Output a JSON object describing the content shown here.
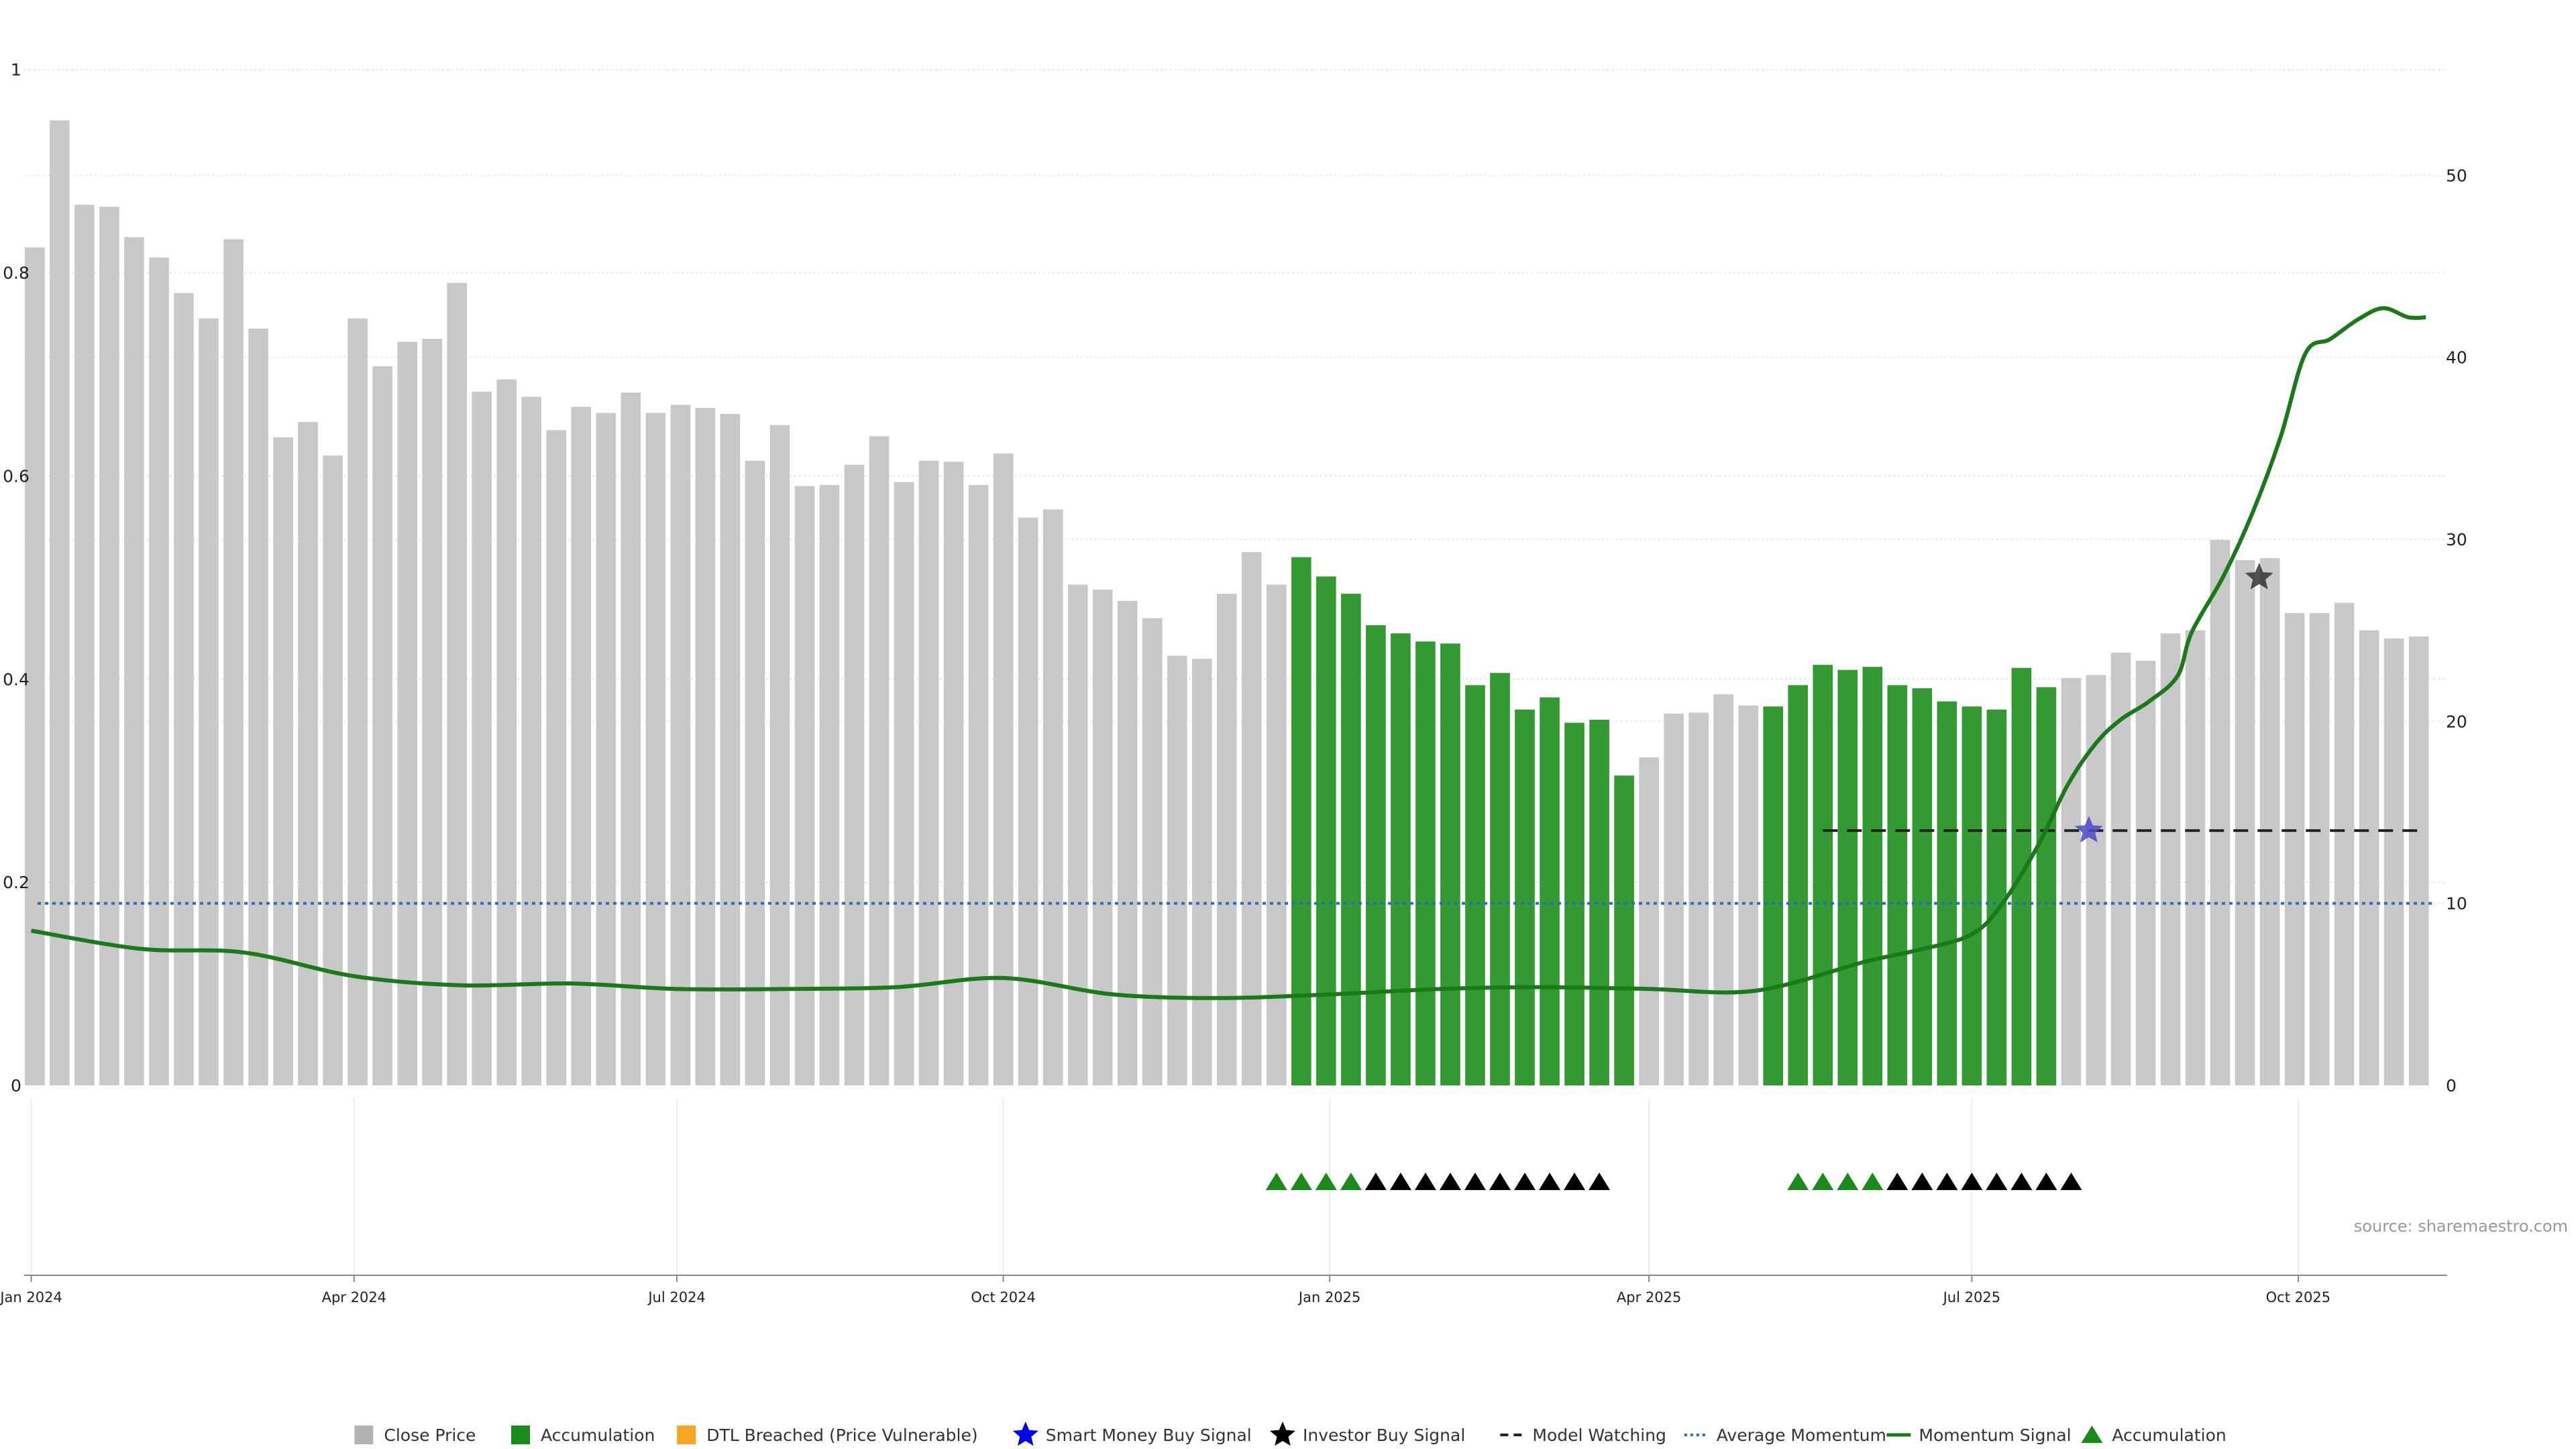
{
  "chart_data": {
    "type": "bar",
    "bar_dates": [
      "2024-01-02",
      "2024-01-09",
      "2024-01-16",
      "2024-01-23",
      "2024-01-30",
      "2024-02-06",
      "2024-02-13",
      "2024-02-20",
      "2024-02-27",
      "2024-03-05",
      "2024-03-12",
      "2024-03-19",
      "2024-03-26",
      "2024-04-02",
      "2024-04-09",
      "2024-04-16",
      "2024-04-23",
      "2024-04-30",
      "2024-05-07",
      "2024-05-14",
      "2024-05-21",
      "2024-05-28",
      "2024-06-04",
      "2024-06-11",
      "2024-06-18",
      "2024-06-25",
      "2024-07-02",
      "2024-07-09",
      "2024-07-16",
      "2024-07-23",
      "2024-07-30",
      "2024-08-06",
      "2024-08-13",
      "2024-08-20",
      "2024-08-27",
      "2024-09-03",
      "2024-09-10",
      "2024-09-17",
      "2024-09-24",
      "2024-10-01",
      "2024-10-08",
      "2024-10-15",
      "2024-10-22",
      "2024-10-29",
      "2024-11-05",
      "2024-11-12",
      "2024-11-19",
      "2024-11-26",
      "2024-12-03",
      "2024-12-10",
      "2024-12-17",
      "2024-12-24",
      "2024-12-31",
      "2025-01-07",
      "2025-01-14",
      "2025-01-21",
      "2025-01-28",
      "2025-02-04",
      "2025-02-11",
      "2025-02-18",
      "2025-02-25",
      "2025-03-04",
      "2025-03-11",
      "2025-03-18",
      "2025-03-25",
      "2025-04-01",
      "2025-04-08",
      "2025-04-15",
      "2025-04-22",
      "2025-04-29",
      "2025-05-06",
      "2025-05-13",
      "2025-05-20",
      "2025-05-27",
      "2025-06-03",
      "2025-06-10",
      "2025-06-17",
      "2025-06-24",
      "2025-07-01",
      "2025-07-08",
      "2025-07-15",
      "2025-07-22",
      "2025-07-29",
      "2025-08-05",
      "2025-08-12",
      "2025-08-19",
      "2025-08-26",
      "2025-09-02",
      "2025-09-09",
      "2025-09-16",
      "2025-09-23",
      "2025-09-30",
      "2025-10-07",
      "2025-10-14",
      "2025-10-21",
      "2025-10-28",
      "2025-11-04"
    ],
    "close_price": [
      0.825,
      0.95,
      0.867,
      0.865,
      0.835,
      0.815,
      0.78,
      0.755,
      0.833,
      0.745,
      0.638,
      0.653,
      0.62,
      0.755,
      0.708,
      0.732,
      0.735,
      0.79,
      0.683,
      0.695,
      0.678,
      0.645,
      0.668,
      0.662,
      0.682,
      0.662,
      0.67,
      0.667,
      0.661,
      0.615,
      0.65,
      0.59,
      0.591,
      0.611,
      0.639,
      0.594,
      0.615,
      0.614,
      0.591,
      0.622,
      0.559,
      0.567,
      0.493,
      0.488,
      0.477,
      0.46,
      0.423,
      0.42,
      0.484,
      0.525,
      0.493,
      0.52,
      0.501,
      0.484,
      0.453,
      0.445,
      0.437,
      0.435,
      0.394,
      0.406,
      0.37,
      0.382,
      0.357,
      0.36,
      0.305,
      0.323,
      0.366,
      0.367,
      0.385,
      0.374,
      0.373,
      0.394,
      0.414,
      0.409,
      0.412,
      0.394,
      0.391,
      0.378,
      0.373,
      0.37,
      0.411,
      0.392,
      0.401,
      0.404,
      0.426,
      0.418,
      0.445,
      0.448,
      0.537,
      0.517,
      0.519,
      0.465,
      0.465,
      0.475,
      0.448,
      0.44,
      0.442
    ],
    "accumulation_ranges": [
      [
        51,
        64
      ],
      [
        70,
        81
      ]
    ],
    "momentum_dates": [
      "2024-01-01",
      "2024-02-01",
      "2024-03-01",
      "2024-04-01",
      "2024-05-01",
      "2024-06-01",
      "2024-07-01",
      "2024-08-01",
      "2024-09-01",
      "2024-10-01",
      "2024-11-01",
      "2024-12-01",
      "2025-01-01",
      "2025-02-01",
      "2025-03-01",
      "2025-04-01",
      "2025-05-01",
      "2025-06-01",
      "2025-06-15",
      "2025-07-01",
      "2025-07-10",
      "2025-07-20",
      "2025-07-28",
      "2025-08-05",
      "2025-08-12",
      "2025-08-20",
      "2025-08-28",
      "2025-09-01",
      "2025-09-10",
      "2025-09-18",
      "2025-09-26",
      "2025-10-03",
      "2025-10-10",
      "2025-10-18",
      "2025-10-25",
      "2025-11-01",
      "2025-11-06"
    ],
    "momentum_signal": [
      8.5,
      7.5,
      7.3,
      6.0,
      5.5,
      5.6,
      5.3,
      5.3,
      5.4,
      5.9,
      5.0,
      4.8,
      5.0,
      5.3,
      5.4,
      5.3,
      5.2,
      6.8,
      7.4,
      8.3,
      10.1,
      13.3,
      16.5,
      18.8,
      20.1,
      21.1,
      22.5,
      24.9,
      28.0,
      31.4,
      35.6,
      40.2,
      41.0,
      42.1,
      42.7,
      42.2,
      42.2
    ],
    "average_momentum": 10,
    "model_watching": {
      "start": "2025-05-20",
      "end": "2025-11-06",
      "value": 14
    },
    "smart_money_buy_signal": {
      "date": "2025-08-03",
      "value": 14
    },
    "investor_buy_signal": {
      "date": "2025-09-20",
      "price": 0.5
    },
    "accumulation_markers": [
      {
        "date": "2024-12-17",
        "color": "#1a8a1a"
      },
      {
        "date": "2024-12-24",
        "color": "#1a8a1a"
      },
      {
        "date": "2024-12-31",
        "color": "#1a8a1a"
      },
      {
        "date": "2025-01-07",
        "color": "#1a8a1a"
      },
      {
        "date": "2025-01-14",
        "color": "#000000"
      },
      {
        "date": "2025-01-21",
        "color": "#000000"
      },
      {
        "date": "2025-01-28",
        "color": "#000000"
      },
      {
        "date": "2025-02-04",
        "color": "#000000"
      },
      {
        "date": "2025-02-11",
        "color": "#000000"
      },
      {
        "date": "2025-02-18",
        "color": "#000000"
      },
      {
        "date": "2025-02-25",
        "color": "#000000"
      },
      {
        "date": "2025-03-04",
        "color": "#000000"
      },
      {
        "date": "2025-03-11",
        "color": "#000000"
      },
      {
        "date": "2025-03-18",
        "color": "#000000"
      },
      {
        "date": "2025-05-13",
        "color": "#1a8a1a"
      },
      {
        "date": "2025-05-20",
        "color": "#1a8a1a"
      },
      {
        "date": "2025-05-27",
        "color": "#1a8a1a"
      },
      {
        "date": "2025-06-03",
        "color": "#1a8a1a"
      },
      {
        "date": "2025-06-10",
        "color": "#000000"
      },
      {
        "date": "2025-06-17",
        "color": "#000000"
      },
      {
        "date": "2025-06-24",
        "color": "#000000"
      },
      {
        "date": "2025-07-01",
        "color": "#000000"
      },
      {
        "date": "2025-07-08",
        "color": "#000000"
      },
      {
        "date": "2025-07-15",
        "color": "#000000"
      },
      {
        "date": "2025-07-22",
        "color": "#000000"
      },
      {
        "date": "2025-07-29",
        "color": "#000000"
      }
    ],
    "left_axis": {
      "ylim": [
        0,
        1.05
      ],
      "ticks": [
        0,
        0.2,
        0.4,
        0.6,
        0.8,
        1
      ],
      "tick_labels": [
        "0",
        "0.2",
        "0.4",
        "0.6",
        "0.8",
        "1"
      ]
    },
    "right_axis": {
      "ylim": [
        0,
        58.6
      ],
      "ticks": [
        0,
        10,
        20,
        30,
        40,
        50
      ],
      "tick_labels": [
        "0",
        "10",
        "20",
        "30",
        "40",
        "50"
      ]
    },
    "x_axis": {
      "range": [
        "2023-12-30",
        "2025-11-12"
      ],
      "ticks": [
        "2024-01-01",
        "2024-04-01",
        "2024-07-01",
        "2024-10-01",
        "2025-01-01",
        "2025-04-01",
        "2025-07-01",
        "2025-10-01"
      ],
      "tick_labels": [
        "Jan 2024",
        "Apr 2024",
        "Jul 2024",
        "Oct 2024",
        "Jan 2025",
        "Apr 2025",
        "Jul 2025",
        "Oct 2025"
      ]
    },
    "grid": true,
    "legend_position": "bottom",
    "source_text": "source: sharemaestro.com",
    "legend": [
      {
        "label": "Close Price",
        "symbol": "square",
        "color": "#b3b3b3"
      },
      {
        "label": "Accumulation",
        "symbol": "square",
        "color": "#1a8a1a"
      },
      {
        "label": "DTL Breached (Price Vulnerable)",
        "symbol": "square",
        "color": "#f5a623"
      },
      {
        "label": "Smart Money Buy Signal",
        "symbol": "star",
        "color": "#0000ee"
      },
      {
        "label": "Investor Buy Signal",
        "symbol": "star",
        "color": "#000000"
      },
      {
        "label": "Model Watching",
        "symbol": "dash",
        "color": "#222222"
      },
      {
        "label": "Average Momentum",
        "symbol": "dot",
        "color": "#2a6db5"
      },
      {
        "label": "Momentum Signal",
        "symbol": "line",
        "color": "#1a7a1a"
      },
      {
        "label": "Accumulation",
        "symbol": "triangle",
        "color": "#1a8a1a"
      }
    ],
    "colors": {
      "close_bar": "#c8c8c8",
      "accum_bar": "#339933",
      "momentum_line": "#1a7a1a",
      "avg_momentum": "#2a6db5",
      "model_watching": "#222222",
      "smart_money": "#4a4ac8",
      "investor": "#333333"
    }
  }
}
